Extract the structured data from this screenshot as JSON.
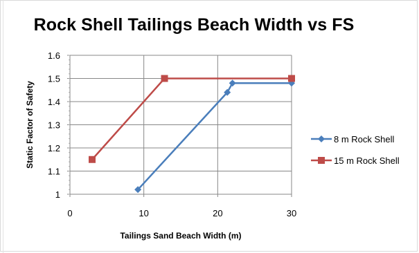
{
  "chart_data": {
    "type": "line",
    "title": "Rock Shell Tailings Beach Width vs FS",
    "xlabel": "Tailings Sand Beach Width (m)",
    "ylabel": "Static Factor of Safety",
    "xlim": [
      0,
      30
    ],
    "ylim": [
      1,
      1.6
    ],
    "xticks": [
      "0",
      "10",
      "20",
      "30"
    ],
    "yticks": [
      "1",
      "1.1",
      "1.2",
      "1.3",
      "1.4",
      "1.5",
      "1.6"
    ],
    "grid": true,
    "legend_position": "right",
    "series": [
      {
        "name": "8 m Rock Shell",
        "color": "#4a7ebb",
        "marker": "diamond",
        "points": [
          [
            9.2,
            1.02
          ],
          [
            21.3,
            1.44
          ],
          [
            22,
            1.48
          ],
          [
            30,
            1.48
          ]
        ]
      },
      {
        "name": "15 m Rock Shell",
        "color": "#be4b48",
        "marker": "square",
        "points": [
          [
            3,
            1.15
          ],
          [
            12.8,
            1.5
          ],
          [
            30,
            1.5
          ]
        ]
      }
    ]
  }
}
